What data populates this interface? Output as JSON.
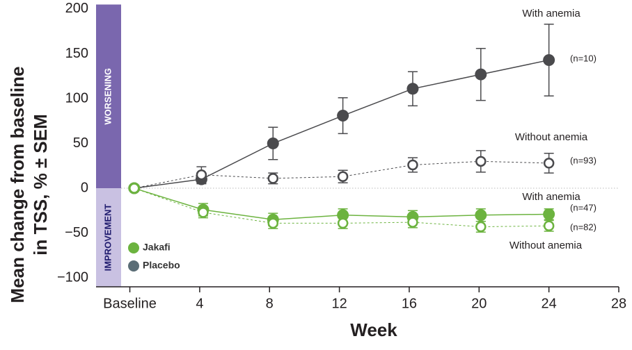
{
  "chart_data": {
    "type": "line",
    "ylabel": [
      "Mean change from baseline",
      "in TSS, % ± SEM"
    ],
    "xlabel": "Week",
    "xlim": [
      -0.5,
      28
    ],
    "ylim": [
      -110,
      205
    ],
    "xticks": [
      {
        "value": 0,
        "label": "Baseline"
      },
      4,
      8,
      12,
      16,
      20,
      24,
      28
    ],
    "yticks": [
      200,
      150,
      100,
      50,
      0,
      {
        "value": -50,
        "label": "−50"
      },
      {
        "value": -100,
        "label": "−100"
      }
    ],
    "zero_line": true,
    "bands": [
      {
        "label": "WORSENING",
        "from": 0,
        "to": 205,
        "color": "#7a67ae",
        "text_color": "#ffffff"
      },
      {
        "label": "IMPROVEMENT",
        "from": -110,
        "to": 0,
        "color": "#c9c1e2",
        "text_color": "#1f1b6e"
      }
    ],
    "legend": [
      {
        "name": "Jakafi",
        "color": "#6cb33f"
      },
      {
        "name": "Placebo",
        "color": "#5a6d76"
      }
    ],
    "series": [
      {
        "label": "With anemia",
        "n": "(n=10)",
        "color": "#4a4a4d",
        "filled": true,
        "dashed": false,
        "x": [
          0.25,
          4.1,
          8.2,
          12.2,
          16.2,
          20.1,
          24.0
        ],
        "values": [
          0,
          10,
          50,
          81,
          111,
          127,
          143
        ],
        "errors": [
          null,
          5,
          18,
          20,
          19,
          29,
          40
        ]
      },
      {
        "label": "Without anemia",
        "n": "(n=93)",
        "color": "#4a4a4d",
        "filled": false,
        "dashed": true,
        "x": [
          0.25,
          4.1,
          8.2,
          12.2,
          16.2,
          20.1,
          24.0
        ],
        "values": [
          0,
          15,
          11,
          13,
          26,
          30,
          28
        ],
        "errors": [
          null,
          9,
          6,
          7,
          8,
          12,
          11
        ]
      },
      {
        "label": "With anemia",
        "n": "(n=47)",
        "color": "#6cb33f",
        "filled": true,
        "dashed": false,
        "x": [
          0.25,
          4.2,
          8.2,
          12.2,
          16.2,
          20.1,
          24.0
        ],
        "values": [
          0,
          -24,
          -35,
          -30,
          -32,
          -30,
          -29
        ],
        "errors": [
          null,
          7,
          7,
          7,
          7,
          7,
          6
        ]
      },
      {
        "label": "Without anemia",
        "n": "(n=82)",
        "color": "#6cb33f",
        "filled": false,
        "dashed": true,
        "x": [
          0.25,
          4.2,
          8.2,
          12.2,
          16.2,
          20.1,
          24.0
        ],
        "values": [
          0,
          -27,
          -39,
          -39,
          -38,
          -43,
          -42
        ],
        "errors": [
          null,
          6,
          6,
          6,
          6,
          6,
          6
        ]
      }
    ]
  }
}
